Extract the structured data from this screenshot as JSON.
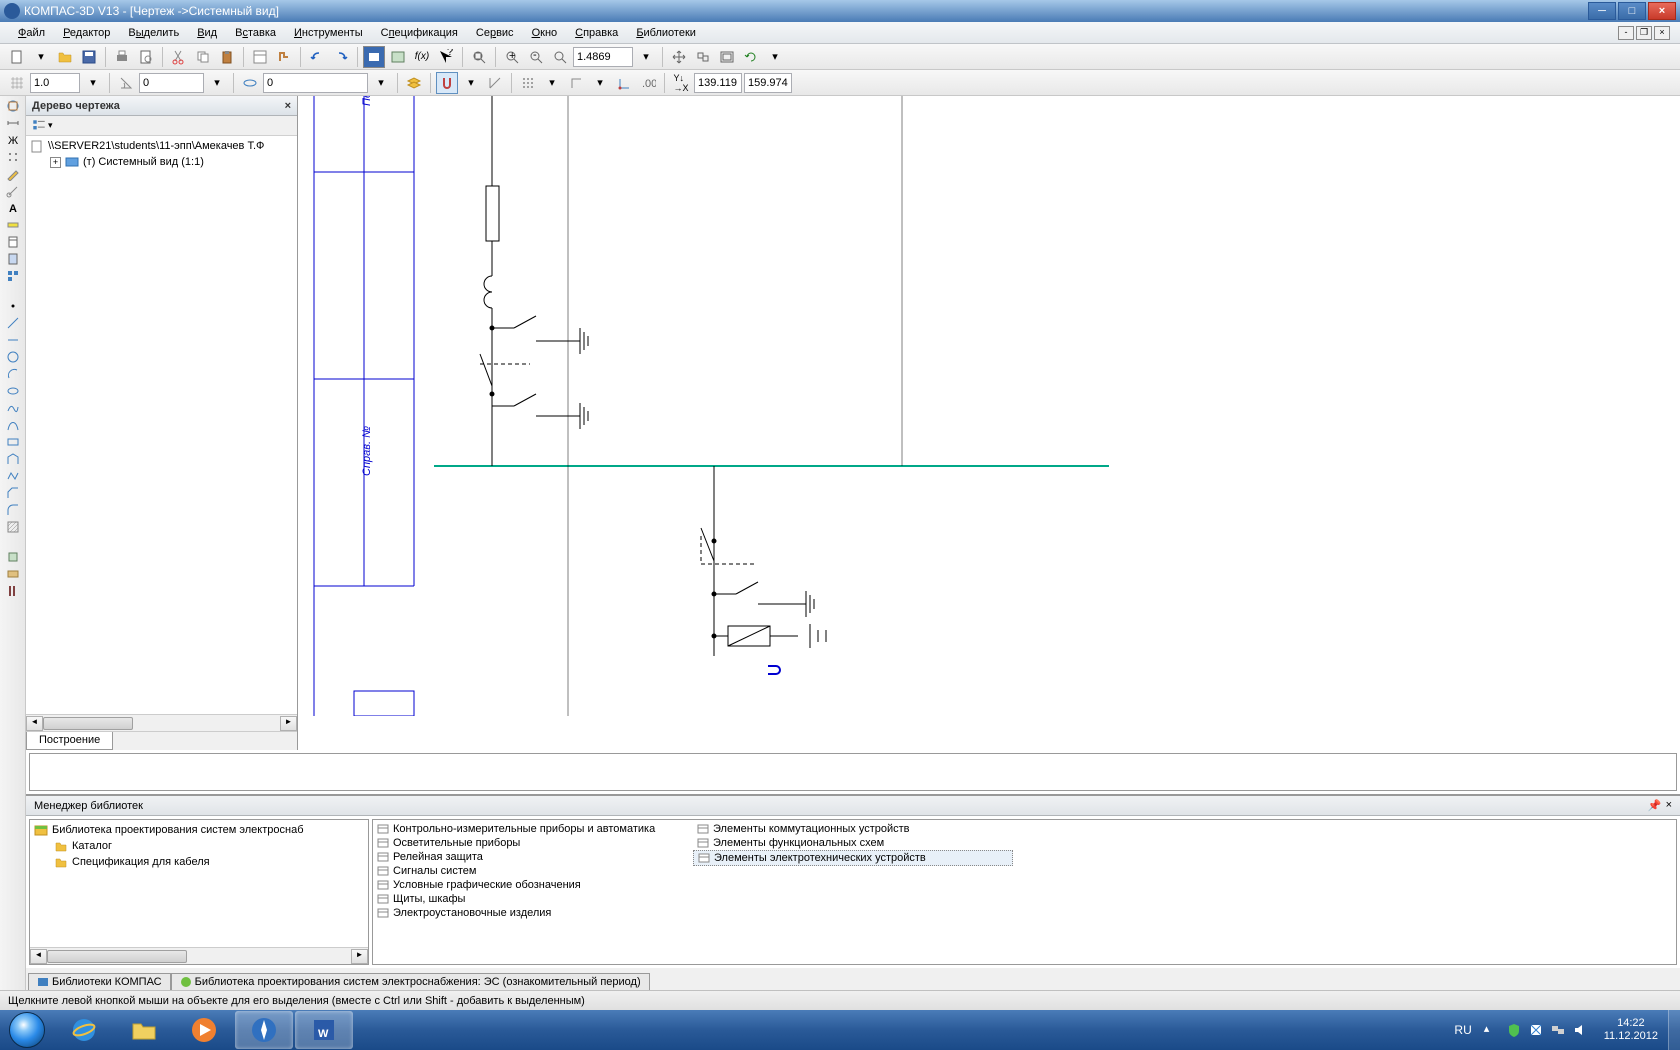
{
  "app": {
    "title": "КОМПАС-3D V13 - [Чертеж ->Системный вид]"
  },
  "menu": {
    "items": [
      "Файл",
      "Редактор",
      "Выделить",
      "Вид",
      "Вставка",
      "Инструменты",
      "Спецификация",
      "Сервис",
      "Окно",
      "Справка",
      "Библиотеки"
    ],
    "accel": [
      "Ф",
      "Р",
      "ы",
      "В",
      "с",
      "И",
      "п",
      "р",
      "О",
      "С",
      "Б"
    ]
  },
  "toolbar1": {
    "zoom_value": "1.4869"
  },
  "toolbar2": {
    "step": "1.0",
    "angle": "0",
    "style": "0",
    "coord_x": "139.119",
    "coord_y": "159.974"
  },
  "tree": {
    "title": "Дерево чертежа",
    "file_path": "\\\\SERVER21\\students\\11-эпп\\Амекачев Т.Ф",
    "view_name": "(т) Системный вид (1:1)",
    "tab": "Построение"
  },
  "drawing": {
    "frame_color": "#0000d0",
    "line_color": "#000000",
    "highlight_color": "#00a888",
    "side_label1": "Пер",
    "side_label2": "Справ. №"
  },
  "libmgr": {
    "title": "Менеджер библиотек",
    "tree_root": "Библиотека проектирования систем электроснаб",
    "tree_items": [
      "Каталог",
      "Спецификация для кабеля"
    ],
    "col1": [
      "Контрольно-измерительные приборы и автоматика",
      "Осветительные приборы",
      "Релейная защита",
      "Сигналы систем",
      "Условные графические обозначения",
      "Щиты, шкафы",
      "Электроустановочные изделия"
    ],
    "col2": [
      "Элементы коммутационных устройств",
      "Элементы функциональных схем",
      "Элементы электротехнических устройств"
    ],
    "col2_sel_idx": 2,
    "tab1": "Библиотеки КОМПАС",
    "tab2": "Библиотека проектирования систем электроснабжения: ЭС (ознакомительный период)"
  },
  "status": {
    "hint": "Щелкните левой кнопкой мыши на объекте для его выделения (вместе с Ctrl или Shift - добавить к выделенным)"
  },
  "tray": {
    "lang": "RU",
    "time": "14:22",
    "date": "11.12.2012"
  }
}
